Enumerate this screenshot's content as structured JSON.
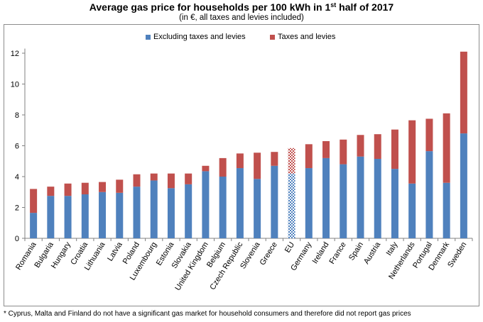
{
  "chart_data": {
    "type": "bar",
    "stacked": true,
    "title": "Average gas price for households per 100 kWh in 1",
    "title_superscript": "st",
    "title_suffix": " half of 2017",
    "subtitle": "(in €, all taxes and levies included)",
    "categories": [
      "Romania",
      "Bulgaria",
      "Hungary",
      "Croatia",
      "Lithuania",
      "Latvia",
      "Poland",
      "Luxembourg",
      "Estonia",
      "Slovakia",
      "United Kingdom",
      "Belgium",
      "Czech Republic",
      "Slovenia",
      "Greece",
      "EU",
      "Germany",
      "Ireland",
      "France",
      "Spain",
      "Austria",
      "Italy",
      "Netherlands",
      "Portugal",
      "Denmark",
      "Sweden"
    ],
    "series": [
      {
        "name": "Excluding taxes and levies",
        "color": "#4f81bd",
        "values": [
          1.65,
          2.75,
          2.75,
          2.85,
          3.0,
          2.95,
          3.35,
          3.75,
          3.25,
          3.5,
          4.35,
          4.0,
          4.55,
          3.85,
          4.7,
          4.2,
          4.55,
          5.2,
          4.8,
          5.3,
          5.15,
          4.5,
          3.55,
          5.65,
          3.6,
          6.8
        ]
      },
      {
        "name": "Taxes and levies",
        "color": "#c0504d",
        "values": [
          1.55,
          0.6,
          0.8,
          0.75,
          0.65,
          0.85,
          0.8,
          0.45,
          0.95,
          0.7,
          0.35,
          1.2,
          0.95,
          1.7,
          0.9,
          1.65,
          1.55,
          1.1,
          1.6,
          1.4,
          1.6,
          2.55,
          4.1,
          2.1,
          4.5,
          5.3
        ]
      }
    ],
    "patterned_category": "EU",
    "ylim": [
      0,
      12.3
    ],
    "yticks": [
      0,
      2,
      4,
      6,
      8,
      10,
      12
    ],
    "ylabel": "",
    "xlabel": "",
    "grid": false,
    "legend_position": "top-center"
  },
  "footnote": "* Cyprus, Malta and Finland do not have a significant gas market for household consumers and therefore did not report gas prices"
}
